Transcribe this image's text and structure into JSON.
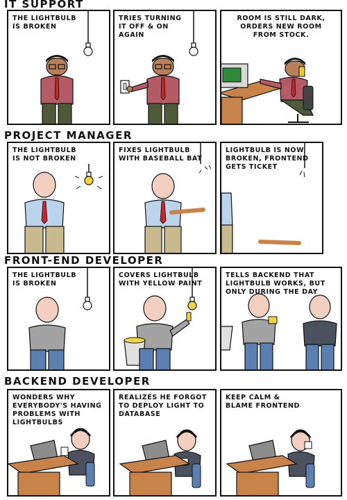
{
  "comic": {
    "rows": [
      {
        "title": "IT SUPPORT",
        "panels": [
          {
            "caption": "THE LIGHTBULB\nIS BROKEN"
          },
          {
            "caption": "TRIES TURNING\nIT OFF & ON\nAGAIN"
          },
          {
            "caption": "ROOM IS STILL DARK,\nORDERS NEW ROOM\nFROM STOCK."
          }
        ]
      },
      {
        "title": "PROJECT MANAGER",
        "panels": [
          {
            "caption": "THE LIGHTBULB\nIS NOT BROKEN"
          },
          {
            "caption": "FIXES LIGHTBULB\nWITH BASEBALL BAT"
          },
          {
            "caption": "LIGHTBULB IS NOW\nBROKEN, FRONTEND\nGETS TICKET"
          }
        ]
      },
      {
        "title": "FRONT-END DEVELOPER",
        "panels": [
          {
            "caption": "THE LIGHTBULB\nIS BROKEN"
          },
          {
            "caption": "COVERS LIGHTBULB\nWITH YELLOW PAINT"
          },
          {
            "caption": "TELLS BACKEND THAT\nLIGHTBULB WORKS, BUT\nONLY DURING THE DAY"
          }
        ]
      },
      {
        "title": "BACKEND DEVELOPER",
        "panels": [
          {
            "caption": "WONDERS WHY\nEVERYBODY'S HAVING\nPROBLEMS WITH\nLIGHTBULBS"
          },
          {
            "caption": "REALIZES HE FORGOT\nTO DEPLOY LIGHT TO\nDATABASE"
          },
          {
            "caption": "KEEP CALM &\nBLAME FRONTEND"
          }
        ]
      }
    ]
  },
  "colors": {
    "line": "#111111",
    "skin_dark": "#b9805c",
    "skin_light": "#f2cfc0",
    "it_shirt": "#b55b66",
    "it_pants": "#4f5a3a",
    "pm_shirt": "#bcd3ec",
    "pm_pants": "#c9b98e",
    "tie": "#c8242c",
    "fe_shirt": "#a3a3a3",
    "be_shirt": "#4c5160",
    "jeans": "#5b7fb0",
    "desk": "#c8834b",
    "bulb_lit": "#f4d33a",
    "paint": "#f1d24b"
  }
}
